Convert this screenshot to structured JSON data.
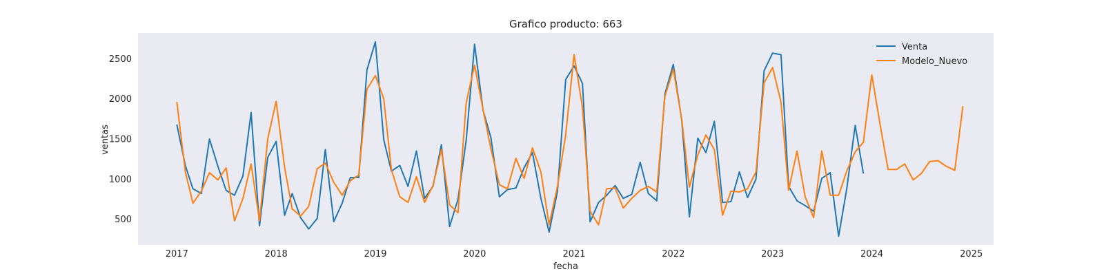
{
  "chart_data": {
    "type": "line",
    "title": "Grafico producto: 663",
    "xlabel": "fecha",
    "ylabel": "ventas",
    "xlim": [
      "2016-08-11",
      "2025-03-24"
    ],
    "ylim": [
      180,
      2820
    ],
    "x_ticks": [
      "2017-01-01",
      "2018-01-01",
      "2019-01-01",
      "2020-01-01",
      "2021-01-01",
      "2022-01-01",
      "2023-01-01",
      "2024-01-01",
      "2025-01-01"
    ],
    "x_tick_labels": [
      "2017",
      "2018",
      "2019",
      "2020",
      "2021",
      "2022",
      "2023",
      "2024",
      "2025"
    ],
    "y_ticks": [
      500,
      1000,
      1500,
      2000,
      2500
    ],
    "y_tick_labels": [
      "500",
      "1000",
      "1500",
      "2000",
      "2500"
    ],
    "grid": false,
    "background": "#eaeaf2",
    "legend_position": "top-right",
    "series": [
      {
        "name": "Venta",
        "color": "#1f77b4",
        "start": "2017-01",
        "values": [
          1680,
          1170,
          880,
          820,
          1500,
          1160,
          860,
          800,
          1040,
          1830,
          420,
          1270,
          1470,
          550,
          820,
          520,
          380,
          510,
          1370,
          470,
          700,
          1020,
          1020,
          2360,
          2710,
          1490,
          1100,
          1170,
          910,
          1350,
          760,
          910,
          1430,
          410,
          750,
          1480,
          2680,
          1860,
          1520,
          780,
          870,
          890,
          1140,
          1330,
          760,
          340,
          850,
          2240,
          2410,
          2190,
          470,
          710,
          800,
          920,
          760,
          810,
          1210,
          820,
          730,
          2060,
          2430,
          1730,
          530,
          1510,
          1330,
          1720,
          710,
          720,
          1090,
          770,
          1000,
          2350,
          2570,
          2550,
          910,
          730,
          670,
          600,
          1010,
          1080,
          290,
          880,
          1670,
          1070
        ]
      },
      {
        "name": "Modelo_Nuevo",
        "color": "#ff7f0e",
        "start": "2017-01",
        "values": [
          1960,
          1090,
          700,
          850,
          1080,
          990,
          1140,
          480,
          760,
          1190,
          480,
          1500,
          1970,
          1150,
          630,
          540,
          660,
          1130,
          1200,
          960,
          800,
          980,
          1050,
          2120,
          2290,
          2000,
          1120,
          780,
          710,
          1030,
          710,
          920,
          1370,
          680,
          580,
          1950,
          2420,
          1870,
          1380,
          930,
          880,
          1260,
          1010,
          1390,
          1090,
          430,
          910,
          1550,
          2550,
          1890,
          600,
          430,
          880,
          890,
          640,
          760,
          860,
          910,
          840,
          2030,
          2370,
          1740,
          900,
          1300,
          1550,
          1370,
          550,
          850,
          840,
          880,
          1090,
          2200,
          2390,
          1960,
          860,
          1350,
          780,
          520,
          1350,
          800,
          800,
          1100,
          1340,
          1460,
          2300,
          1670,
          1120,
          1120,
          1190,
          990,
          1070,
          1220,
          1230,
          1160,
          1110,
          1910
        ]
      }
    ]
  }
}
